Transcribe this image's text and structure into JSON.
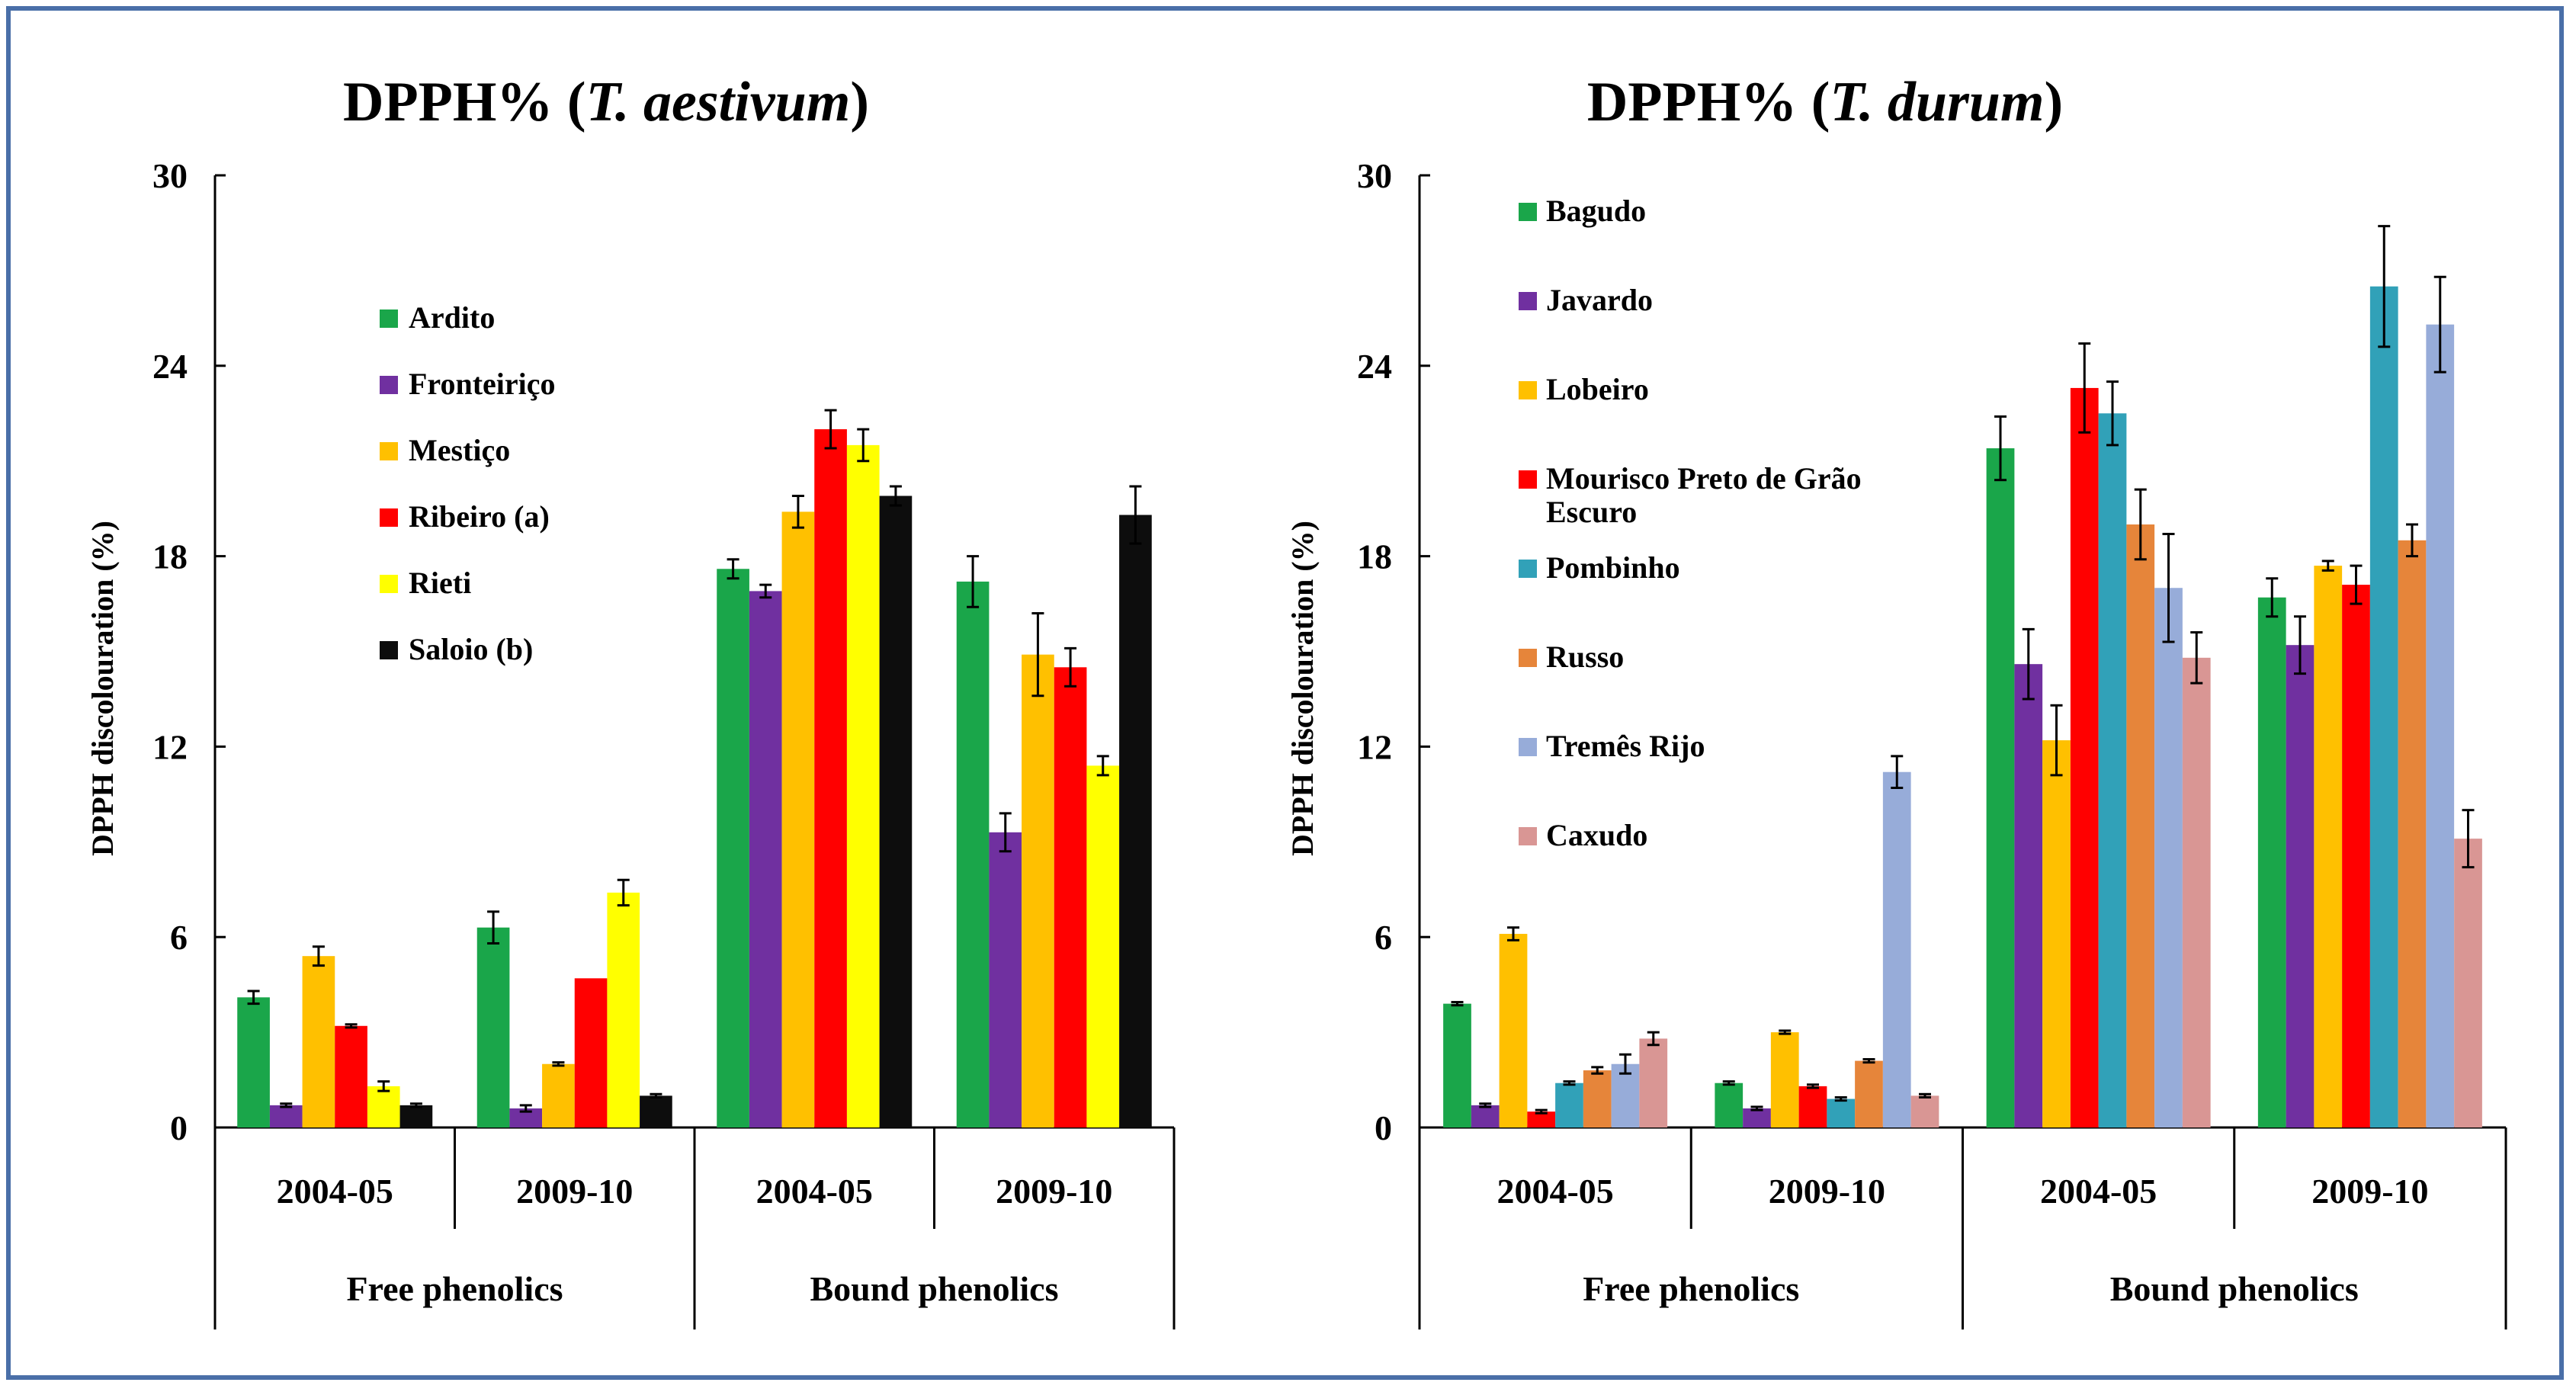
{
  "chart_data": [
    {
      "type": "bar",
      "title": "DPPH% (T. aestivum)",
      "title_prefix": "DPPH% (",
      "title_species": "T. aestivum",
      "title_suffix": ")",
      "ylabel": "DPPH discolouration (%)",
      "xlabel": "",
      "ylim": [
        0,
        30
      ],
      "yticks": [
        "0",
        "6",
        "12",
        "18",
        "24",
        "30"
      ],
      "categories": [
        "2004-05",
        "2009-10",
        "2004-05",
        "2009-10"
      ],
      "groups": [
        "Free phenolics",
        "Bound phenolics"
      ],
      "legend_position": "upper-left",
      "series": [
        {
          "name": "Ardito",
          "color": "#1aa64a",
          "values": [
            4.1,
            6.3,
            17.6,
            17.2
          ],
          "errors": [
            0.2,
            0.5,
            0.3,
            0.8
          ]
        },
        {
          "name": "Fronteiriço",
          "color": "#7030a0",
          "values": [
            0.7,
            0.6,
            16.9,
            9.3
          ],
          "errors": [
            0.05,
            0.1,
            0.2,
            0.6
          ]
        },
        {
          "name": "Mestiço",
          "color": "#ffc000",
          "values": [
            5.4,
            2.0,
            19.4,
            14.9
          ],
          "errors": [
            0.3,
            0.05,
            0.5,
            1.3
          ]
        },
        {
          "name": "Ribeiro (a)",
          "color": "#ff0000",
          "values": [
            3.2,
            4.7,
            22.0,
            14.5
          ],
          "errors": [
            0.05,
            0.0,
            0.6,
            0.6
          ]
        },
        {
          "name": "Rieti",
          "color": "#ffff00",
          "values": [
            1.3,
            7.4,
            21.5,
            11.4
          ],
          "errors": [
            0.15,
            0.4,
            0.5,
            0.3
          ]
        },
        {
          "name": "Saloio (b)",
          "color": "#0d0d0d",
          "values": [
            0.7,
            1.0,
            19.9,
            19.3
          ],
          "errors": [
            0.05,
            0.05,
            0.3,
            0.9
          ]
        }
      ]
    },
    {
      "type": "bar",
      "title": "DPPH% (T. durum)",
      "title_prefix": "DPPH% (",
      "title_species": "T. durum",
      "title_suffix": ")",
      "ylabel": "DPPH discolouration (%)",
      "xlabel": "",
      "ylim": [
        0,
        30
      ],
      "yticks": [
        "0",
        "6",
        "12",
        "18",
        "24",
        "30"
      ],
      "categories": [
        "2004-05",
        "2009-10",
        "2004-05",
        "2009-10"
      ],
      "groups": [
        "Free phenolics",
        "Bound phenolics"
      ],
      "legend_position": "upper-left",
      "series": [
        {
          "name": "Bagudo",
          "color": "#1aa64a",
          "values": [
            3.9,
            1.4,
            21.4,
            16.7
          ],
          "errors": [
            0.05,
            0.05,
            1.0,
            0.6
          ]
        },
        {
          "name": "Javardo",
          "color": "#7030a0",
          "values": [
            0.7,
            0.6,
            14.6,
            15.2
          ],
          "errors": [
            0.05,
            0.05,
            1.1,
            0.9
          ]
        },
        {
          "name": "Lobeiro",
          "color": "#ffc000",
          "values": [
            6.1,
            3.0,
            12.2,
            17.7
          ],
          "errors": [
            0.2,
            0.05,
            1.1,
            0.15
          ]
        },
        {
          "name": "Mourisco Preto de Grão\nEscuro",
          "color": "#ff0000",
          "values": [
            0.5,
            1.3,
            23.3,
            17.1
          ],
          "errors": [
            0.05,
            0.05,
            1.4,
            0.6
          ]
        },
        {
          "name": "Pombinho",
          "color": "#31a1b8",
          "values": [
            1.4,
            0.9,
            22.5,
            26.5
          ],
          "errors": [
            0.05,
            0.05,
            1.0,
            1.9
          ]
        },
        {
          "name": "Russo",
          "color": "#e6853a",
          "values": [
            1.8,
            2.1,
            19.0,
            18.5
          ],
          "errors": [
            0.1,
            0.05,
            1.1,
            0.5
          ]
        },
        {
          "name": "Tremês Rijo",
          "color": "#97acd9",
          "values": [
            2.0,
            11.2,
            17.0,
            25.3
          ],
          "errors": [
            0.3,
            0.5,
            1.7,
            1.5
          ]
        },
        {
          "name": "Caxudo",
          "color": "#d99694",
          "values": [
            2.8,
            1.0,
            14.8,
            9.1
          ],
          "errors": [
            0.2,
            0.05,
            0.8,
            0.9
          ]
        }
      ]
    }
  ]
}
